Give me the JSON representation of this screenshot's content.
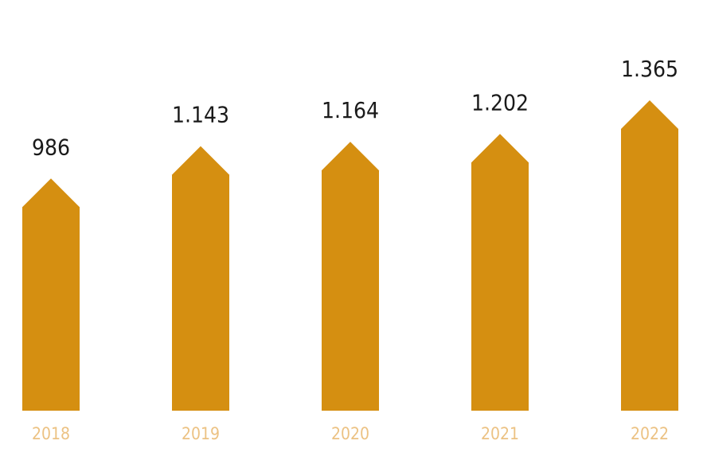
{
  "chart_data": {
    "type": "bar",
    "categories": [
      "2018",
      "2019",
      "2020",
      "2021",
      "2022"
    ],
    "values": [
      986,
      1143,
      1164,
      1202,
      1365
    ],
    "value_labels": [
      "986",
      "1.143",
      "1.164",
      "1.202",
      "1.365"
    ],
    "title": "",
    "xlabel": "",
    "ylabel": "",
    "grid": false,
    "legend": "none",
    "colors": {
      "bar": "#D58F11",
      "value_label": "#1a1a1a",
      "tick_label": "#ECC283"
    }
  }
}
